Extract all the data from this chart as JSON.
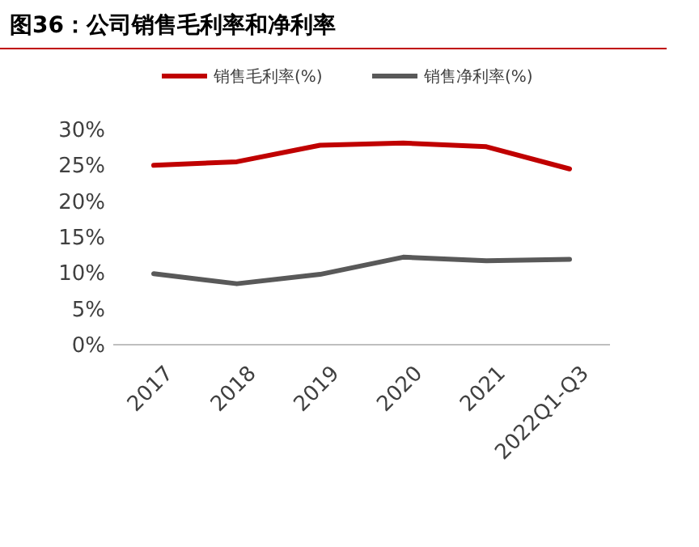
{
  "chart_data": {
    "type": "line",
    "title": "图36：公司销售毛利率和净利率",
    "categories": [
      "2017",
      "2018",
      "2019",
      "2020",
      "2021",
      "2022Q1-Q3"
    ],
    "series": [
      {
        "name": "销售毛利率(%)",
        "color": "#c00000",
        "values": [
          25.0,
          25.5,
          27.8,
          28.1,
          27.6,
          24.5
        ]
      },
      {
        "name": "销售净利率(%)",
        "color": "#595959",
        "values": [
          9.9,
          8.5,
          9.8,
          12.2,
          11.7,
          11.9
        ]
      }
    ],
    "ylim": [
      0,
      30
    ],
    "yticks": [
      {
        "value": 0,
        "label": "0%"
      },
      {
        "value": 5,
        "label": "5%"
      },
      {
        "value": 10,
        "label": "10%"
      },
      {
        "value": 15,
        "label": "15%"
      },
      {
        "value": 20,
        "label": "20%"
      },
      {
        "value": 25,
        "label": "25%"
      },
      {
        "value": 30,
        "label": "30%"
      }
    ],
    "legend": "top",
    "marker": "none",
    "line_style": "solid",
    "grid": false
  }
}
